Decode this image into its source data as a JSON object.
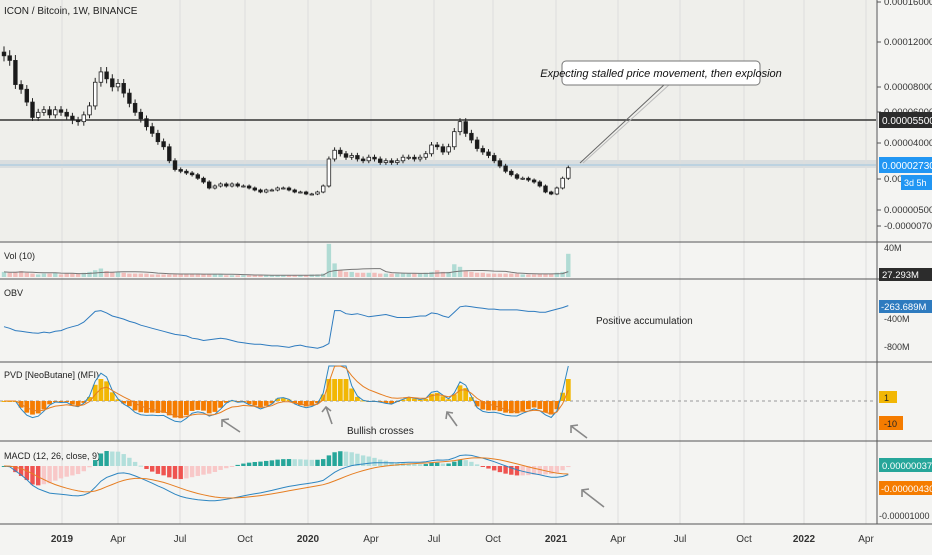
{
  "header": {
    "symbol": "ICON / Bitcoin, 1W, BINANCE"
  },
  "colors": {
    "up": "#26a69a",
    "down": "#ef5350",
    "candle_body": "#1a1a1a",
    "obv": "#2e7bbf",
    "pvd_pos": "#f2b705",
    "pvd_neg": "#f57c00",
    "macd_line": "#2e86c1",
    "signal_line": "#e67e22",
    "hist_strong_up": "#26a69a",
    "hist_weak_up": "#b2dfdb",
    "hist_strong_down": "#ef5350",
    "hist_weak_down": "#f8c8c8",
    "price_badge": "#2196f3"
  },
  "price_axis": {
    "ticks": [
      "0.00016000",
      "0.00012000",
      "0.00008000",
      "0.00006000",
      "0.00004000",
      "0.00002000",
      "0.00000500",
      "-0.00000700"
    ],
    "resistance_label": "0.00005500",
    "current_label": "0.00002730",
    "countdown": "3d 5h"
  },
  "annotations": {
    "callout": "Expecting stalled price movement, then explosion",
    "obv_note": "Positive accumulation",
    "bullish_note": "Bullish crosses"
  },
  "volume": {
    "title": "Vol (10)",
    "axis_top": "40M",
    "current_label": "27.293M"
  },
  "obv": {
    "title": "OBV",
    "current_label": "-263.689M",
    "ticks": [
      "-400M",
      "-800M"
    ]
  },
  "pvd": {
    "title": "PVD [NeoButane] (MFI)",
    "label_pos": "1",
    "label_neg": "-10"
  },
  "macd": {
    "title": "MACD (12, 26, close, 9)",
    "label_pos": "0.00000037",
    "label_neg": "-0.00000430",
    "tick": "-0.00001000"
  },
  "time_axis": [
    "2019",
    "Apr",
    "Jul",
    "Oct",
    "2020",
    "Apr",
    "Jul",
    "Oct",
    "2021",
    "Apr",
    "Jul",
    "Oct",
    "2022",
    "Apr"
  ],
  "chart_data": {
    "type": "line",
    "title": "ICON / Bitcoin, 1W, BINANCE",
    "resistance": 5.5e-05,
    "support_zone": [
      2.57e-05,
      2.9e-05
    ],
    "weekly_close": [
      0.000108,
      0.000104,
      8.3e-05,
      7.9e-05,
      6.9e-05,
      5.7e-05,
      6.1e-05,
      6.3e-05,
      5.9e-05,
      6.3e-05,
      6.1e-05,
      5.8e-05,
      5.5e-05,
      5.4e-05,
      5.9e-05,
      6.6e-05,
      8.5e-05,
      9.4e-05,
      8.8e-05,
      8.1e-05,
      8.4e-05,
      7.6e-05,
      6.8e-05,
      6.1e-05,
      5.6e-05,
      5.1e-05,
      4.7e-05,
      4.2e-05,
      3.9e-05,
      3.1e-05,
      2.6e-05,
      2.5e-05,
      2.4e-05,
      2.3e-05,
      2.1e-05,
      1.9e-05,
      1.6e-05,
      1.7e-05,
      1.8e-05,
      1.7e-05,
      1.8e-05,
      1.7e-05,
      1.7e-05,
      1.6e-05,
      1.5e-05,
      1.4e-05,
      1.5e-05,
      1.5e-05,
      1.6e-05,
      1.6e-05,
      1.5e-05,
      1.4e-05,
      1.4e-05,
      1.3e-05,
      1.3e-05,
      1.4e-05,
      1.7e-05,
      3.2e-05,
      3.7e-05,
      3.5e-05,
      3.3e-05,
      3.4e-05,
      3.2e-05,
      3.1e-05,
      3.3e-05,
      3.2e-05,
      3e-05,
      3.1e-05,
      3e-05,
      3.1e-05,
      3.3e-05,
      3.3e-05,
      3.2e-05,
      3.3e-05,
      3.5e-05,
      4e-05,
      3.9e-05,
      3.6e-05,
      3.9e-05,
      4.8e-05,
      5.4e-05,
      4.7e-05,
      4.3e-05,
      3.8e-05,
      3.6e-05,
      3.4e-05,
      3.1e-05,
      2.8e-05,
      2.5e-05,
      2.3e-05,
      2.1e-05,
      2.1e-05,
      2e-05,
      1.9e-05,
      1.7e-05,
      1.4e-05,
      1.3e-05,
      1.6e-05,
      2.1e-05,
      2.7e-05
    ],
    "obv": [
      -540,
      -560,
      -590,
      -600,
      -610,
      -620,
      -625,
      -610,
      -620,
      -600,
      -590,
      -560,
      -540,
      -520,
      -480,
      -410,
      -340,
      -330,
      -360,
      -400,
      -420,
      -440,
      -470,
      -490,
      -520,
      -540,
      -560,
      -580,
      -600,
      -620,
      -640,
      -650,
      -660,
      -690,
      -700,
      -720,
      -710,
      -700,
      -690,
      -700,
      -720,
      -740,
      -750,
      -760,
      -770,
      -770,
      -780,
      -790,
      -790,
      -800,
      -810,
      -790,
      -780,
      -800,
      -810,
      -820,
      -800,
      -760,
      -330,
      -330,
      -370,
      -380,
      -370,
      -390,
      -410,
      -400,
      -390,
      -380,
      -400,
      -420,
      -420,
      -420,
      -410,
      -400,
      -400,
      -360,
      -370,
      -400,
      -420,
      -350,
      -280,
      -270,
      -280,
      -290,
      -300,
      -310,
      -310,
      -320,
      -320,
      -320,
      -320,
      -330,
      -340,
      -340,
      -350,
      -350,
      -330,
      -310,
      -290,
      -264
    ],
    "volume": [
      6,
      5,
      6,
      7,
      5,
      4,
      3,
      4,
      4,
      5,
      3,
      4,
      4,
      4,
      5,
      6,
      8,
      10,
      7,
      6,
      6,
      5,
      4,
      4,
      4,
      4,
      3,
      3,
      3,
      3,
      3,
      4,
      4,
      4,
      4,
      3,
      3,
      3,
      3,
      2,
      2,
      2,
      2,
      2,
      2,
      2,
      2,
      2,
      2,
      2,
      2,
      2,
      2,
      2,
      3,
      3,
      4,
      39,
      16,
      8,
      6,
      6,
      5,
      5,
      5,
      5,
      4,
      4,
      4,
      4,
      4,
      4,
      4,
      4,
      5,
      6,
      8,
      6,
      6,
      15,
      12,
      7,
      6,
      5,
      5,
      4,
      4,
      4,
      4,
      4,
      4,
      3,
      3,
      3,
      4,
      4,
      4,
      5,
      6,
      27.293
    ],
    "pvd_bullish_cross_weeks": [
      38,
      60,
      83,
      100
    ],
    "macd_bullish_cross_weeks": [
      100
    ]
  }
}
